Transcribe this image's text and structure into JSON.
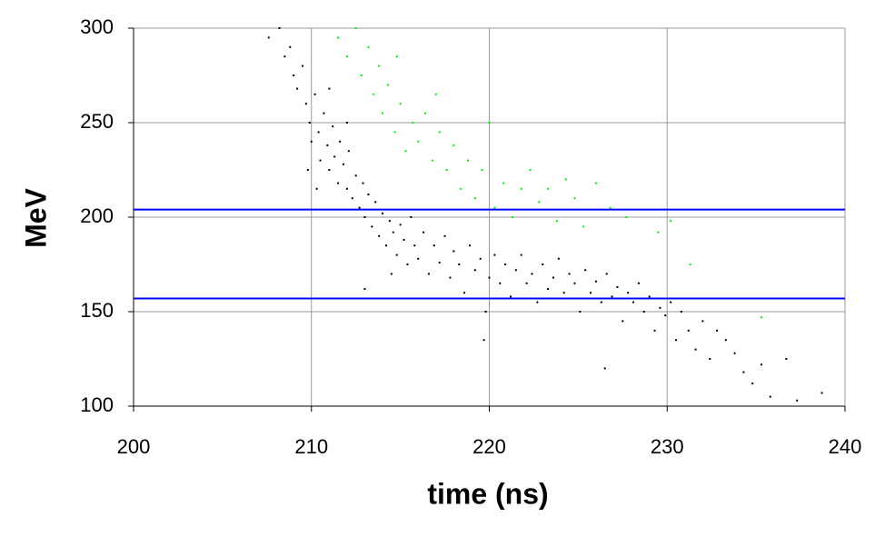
{
  "chart_data": {
    "type": "scatter",
    "xlabel": "time (ns)",
    "ylabel": "MeV",
    "xlim": [
      200,
      240
    ],
    "xticks": [
      200,
      210,
      220,
      230,
      240
    ],
    "ylim": [
      100,
      300
    ],
    "yticks": [
      100,
      150,
      200,
      250,
      300
    ],
    "grid": true,
    "hlines": [
      {
        "value": 204,
        "color": "#0000ff"
      },
      {
        "value": 157,
        "color": "#0000ff"
      }
    ],
    "series": [
      {
        "color": "#000000",
        "x": [
          207.6,
          208.2,
          208.5,
          208.8,
          209.0,
          209.2,
          209.5,
          209.7,
          209.9,
          210.0,
          210.2,
          210.4,
          210.5,
          210.7,
          210.9,
          211.0,
          211.2,
          211.3,
          211.5,
          211.6,
          211.8,
          212.0,
          212.1,
          212.3,
          212.5,
          212.7,
          212.9,
          213.0,
          213.2,
          213.4,
          213.6,
          213.8,
          214.0,
          214.2,
          214.4,
          214.6,
          214.8,
          215.0,
          215.2,
          215.4,
          215.6,
          215.8,
          216.0,
          216.3,
          216.6,
          216.9,
          217.2,
          217.5,
          217.8,
          218.0,
          218.3,
          218.6,
          218.9,
          219.2,
          219.5,
          219.8,
          220.0,
          220.3,
          220.6,
          220.9,
          221.2,
          221.5,
          221.8,
          222.1,
          222.4,
          222.7,
          223.0,
          223.3,
          223.6,
          223.9,
          224.2,
          224.5,
          224.8,
          225.1,
          225.4,
          225.7,
          226.0,
          226.3,
          226.6,
          226.9,
          227.2,
          227.5,
          227.8,
          228.1,
          228.4,
          228.7,
          229.0,
          229.3,
          229.6,
          229.9,
          230.2,
          230.5,
          230.8,
          231.2,
          231.6,
          232.0,
          232.4,
          232.8,
          233.3,
          233.8,
          234.3,
          234.8,
          235.3,
          235.8,
          236.7,
          237.3,
          238.7,
          226.5,
          219.7,
          213.0,
          209.8,
          210.3,
          211.0,
          212.0,
          214.5
        ],
        "values": [
          295,
          300,
          285,
          290,
          275,
          268,
          280,
          260,
          250,
          240,
          265,
          245,
          230,
          255,
          238,
          225,
          248,
          232,
          218,
          240,
          228,
          215,
          235,
          210,
          222,
          205,
          218,
          200,
          212,
          195,
          208,
          190,
          202,
          185,
          198,
          192,
          180,
          196,
          188,
          175,
          200,
          185,
          178,
          192,
          170,
          185,
          176,
          190,
          168,
          182,
          175,
          160,
          185,
          172,
          178,
          150,
          168,
          180,
          165,
          175,
          158,
          172,
          180,
          165,
          170,
          155,
          175,
          162,
          168,
          178,
          160,
          170,
          165,
          150,
          172,
          160,
          166,
          155,
          170,
          158,
          163,
          145,
          160,
          155,
          165,
          150,
          158,
          140,
          152,
          148,
          155,
          135,
          150,
          140,
          130,
          145,
          125,
          140,
          135,
          128,
          118,
          112,
          122,
          105,
          125,
          103,
          107,
          120,
          135,
          162,
          225,
          215,
          268,
          250,
          170
        ]
      },
      {
        "color": "#00ee00",
        "x": [
          211.5,
          212.0,
          212.5,
          212.8,
          213.2,
          213.5,
          213.8,
          214.0,
          214.3,
          214.7,
          215.0,
          215.3,
          215.7,
          216.0,
          216.4,
          216.8,
          217.2,
          217.6,
          218.0,
          218.4,
          218.8,
          219.2,
          219.6,
          220.0,
          220.3,
          220.8,
          221.3,
          221.8,
          222.3,
          222.8,
          223.3,
          223.8,
          224.3,
          224.8,
          225.3,
          226.0,
          226.8,
          227.7,
          229.5,
          230.2,
          231.3,
          235.3,
          217.0,
          214.8
        ],
        "values": [
          295,
          285,
          300,
          275,
          290,
          265,
          280,
          255,
          270,
          245,
          260,
          235,
          250,
          240,
          255,
          230,
          245,
          225,
          238,
          215,
          230,
          210,
          225,
          250,
          205,
          218,
          200,
          215,
          225,
          208,
          215,
          198,
          220,
          210,
          195,
          218,
          205,
          200,
          192,
          198,
          175,
          147,
          265,
          285
        ]
      }
    ]
  }
}
